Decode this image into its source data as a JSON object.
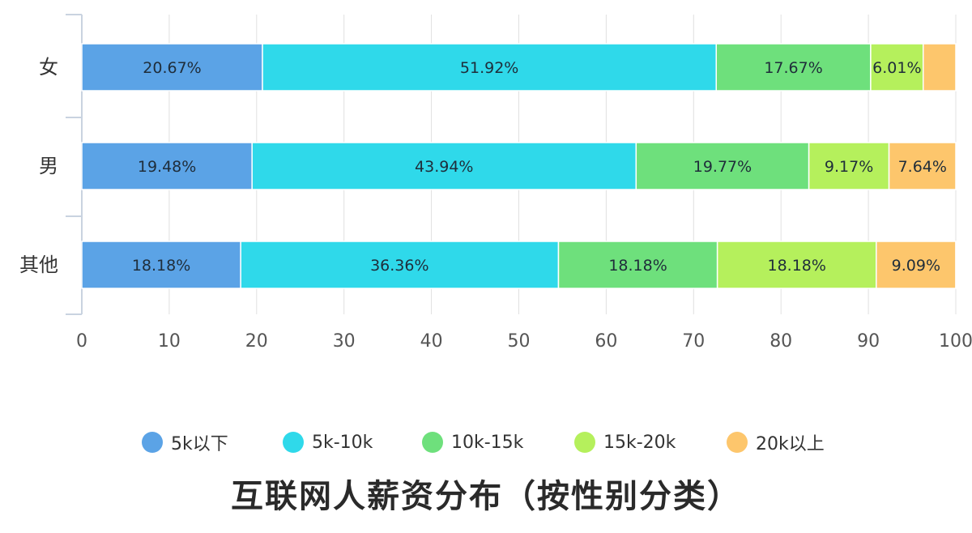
{
  "chart_data": {
    "type": "bar",
    "orientation": "horizontal",
    "stacked": true,
    "title": "互联网人薪资分布（按性别分类）",
    "xlim": [
      0,
      100
    ],
    "x_ticks": [
      "0",
      "10",
      "20",
      "30",
      "40",
      "50",
      "60",
      "70",
      "80",
      "90",
      "100"
    ],
    "grid": true,
    "legend_position": "bottom",
    "categories": [
      "女",
      "男",
      "其他"
    ],
    "series": [
      {
        "name": "5k以下",
        "color": "#5ba3e6",
        "values": [
          20.67,
          19.48,
          18.18
        ],
        "labels": [
          "20.67%",
          "19.48%",
          "18.18%"
        ]
      },
      {
        "name": "5k-10k",
        "color": "#2fd9ea",
        "values": [
          51.92,
          43.94,
          36.36
        ],
        "labels": [
          "51.92%",
          "43.94%",
          "36.36%"
        ]
      },
      {
        "name": "10k-15k",
        "color": "#6ee07c",
        "values": [
          17.67,
          19.77,
          18.18
        ],
        "labels": [
          "17.67%",
          "19.77%",
          "18.18%"
        ]
      },
      {
        "name": "15k-20k",
        "color": "#b5f05c",
        "values": [
          6.01,
          9.17,
          18.18
        ],
        "labels": [
          "6.01%",
          "9.17%",
          "18.18%"
        ]
      },
      {
        "name": "20k以上",
        "color": "#fdc66c",
        "values": [
          3.73,
          7.64,
          9.09
        ],
        "labels": [
          "",
          "7.64%",
          "9.09%"
        ]
      }
    ]
  }
}
